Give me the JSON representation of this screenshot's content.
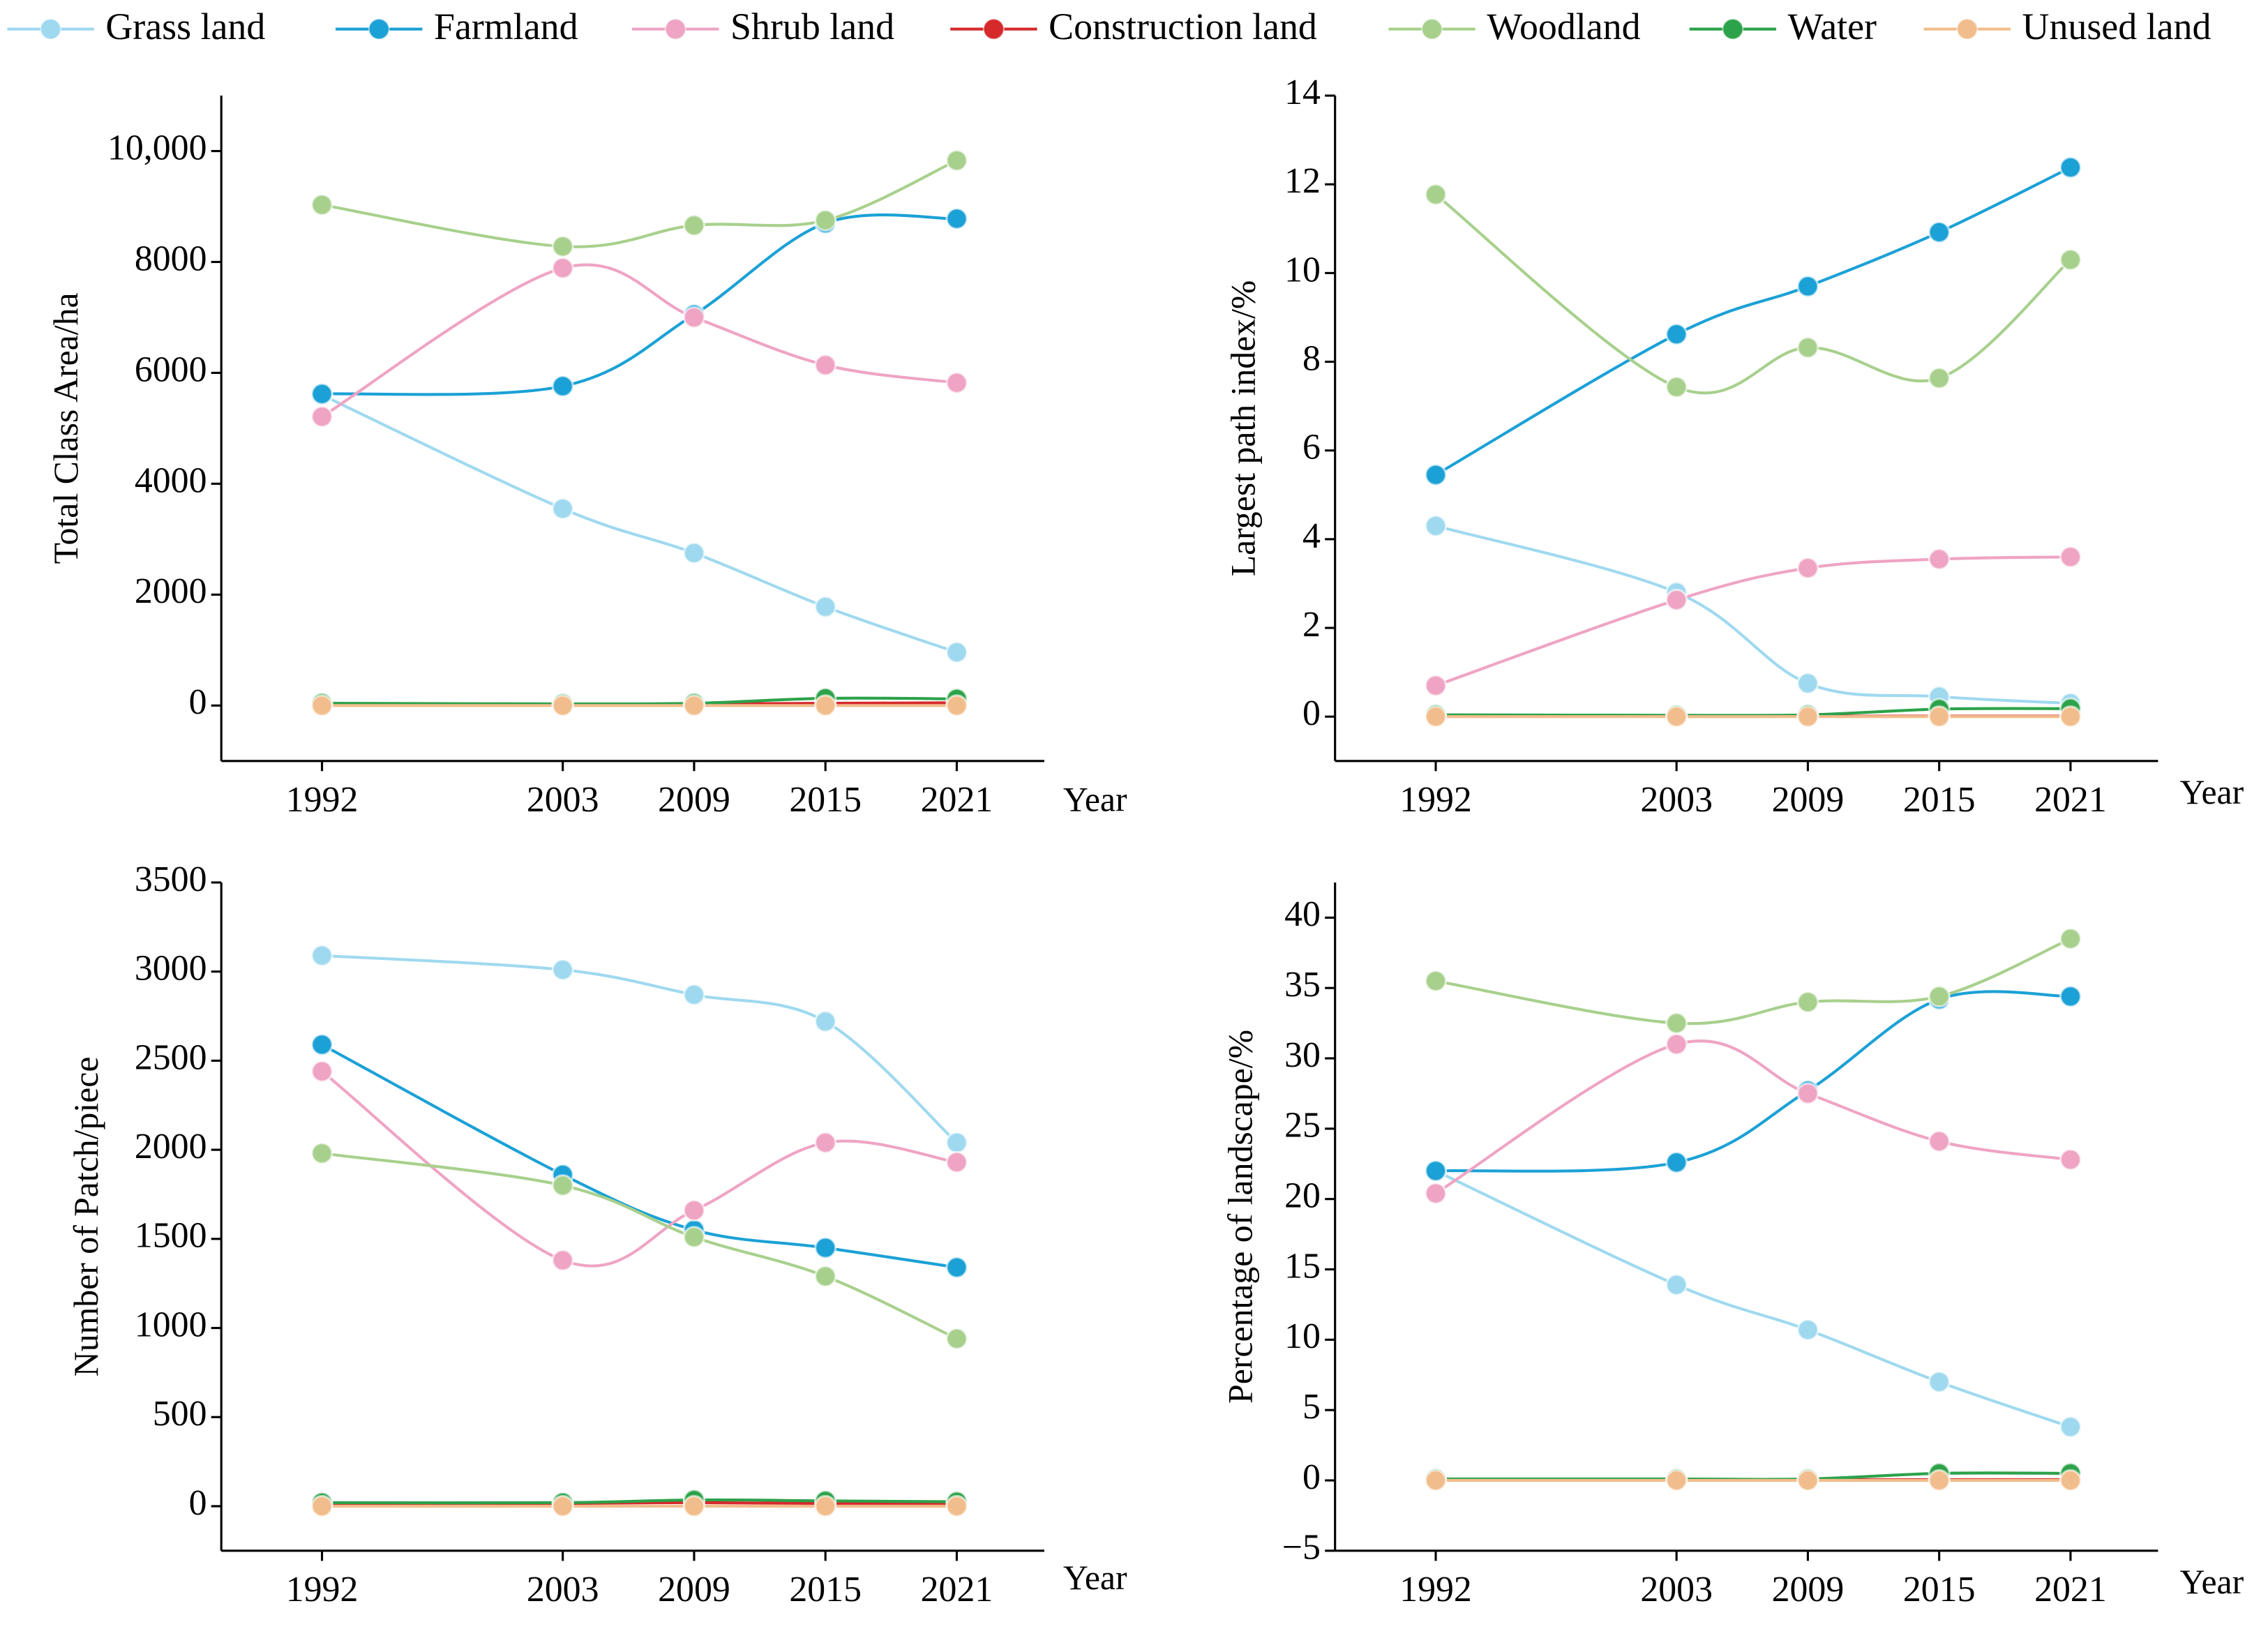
{
  "chart_data": [
    {
      "type": "line",
      "y_label": "Total Class Area/ha",
      "x_label": "Year",
      "x": [
        1992,
        2003,
        2009,
        2015,
        2021
      ],
      "xlim": [
        1987.4,
        2025
      ],
      "xticks": [
        1992,
        2003,
        2009,
        2015,
        2021
      ],
      "ylim": [
        -1000,
        11000
      ],
      "yticks": [
        0,
        2000,
        4000,
        6000,
        8000,
        {
          "value": 10000,
          "label": "10,000"
        }
      ],
      "series": [
        {
          "name": "Grass land",
          "color": "#9fd9ef",
          "values": [
            5600,
            3550,
            2750,
            1780,
            960
          ]
        },
        {
          "name": "Farmland",
          "color": "#1ba1d6",
          "values": [
            5620,
            5760,
            7050,
            8700,
            8780
          ]
        },
        {
          "name": "Shrub land",
          "color": "#efa4c4",
          "values": [
            5210,
            7890,
            7000,
            6140,
            5820
          ]
        },
        {
          "name": "Construction land",
          "color": "#d6292b",
          "values": [
            20,
            20,
            30,
            40,
            50
          ]
        },
        {
          "name": "Woodland",
          "color": "#a8d08d",
          "values": [
            9030,
            8280,
            8660,
            8750,
            9830
          ]
        },
        {
          "name": "Water",
          "color": "#2ca24a",
          "values": [
            40,
            30,
            40,
            130,
            120
          ]
        },
        {
          "name": "Unused land",
          "color": "#f2bd8c",
          "values": [
            0,
            0,
            0,
            0,
            0
          ]
        }
      ]
    },
    {
      "type": "line",
      "y_label": "Largest path index/%",
      "x_label": "Year",
      "x": [
        1992,
        2003,
        2009,
        2015,
        2021
      ],
      "xlim": [
        1987.4,
        2025
      ],
      "xticks": [
        1992,
        2003,
        2009,
        2015,
        2021
      ],
      "ylim": [
        -1,
        14
      ],
      "yticks": [
        0,
        2,
        4,
        6,
        8,
        10,
        12,
        14
      ],
      "series": [
        {
          "name": "Grass land",
          "color": "#9fd9ef",
          "values": [
            4.3,
            2.8,
            0.75,
            0.45,
            0.3
          ]
        },
        {
          "name": "Farmland",
          "color": "#1ba1d6",
          "values": [
            5.45,
            8.62,
            9.7,
            10.92,
            12.38
          ]
        },
        {
          "name": "Shrub land",
          "color": "#efa4c4",
          "values": [
            0.7,
            2.63,
            3.35,
            3.55,
            3.6
          ]
        },
        {
          "name": "Construction land",
          "color": "#d6292b",
          "values": [
            0.01,
            0.01,
            0.01,
            0.01,
            0.01
          ]
        },
        {
          "name": "Woodland",
          "color": "#a8d08d",
          "values": [
            11.77,
            7.43,
            8.32,
            7.63,
            10.3
          ]
        },
        {
          "name": "Water",
          "color": "#2ca24a",
          "values": [
            0.04,
            0.03,
            0.04,
            0.17,
            0.18
          ]
        },
        {
          "name": "Unused land",
          "color": "#f2bd8c",
          "values": [
            0,
            0,
            0,
            0,
            0
          ]
        }
      ]
    },
    {
      "type": "line",
      "y_label": "Number of Patch/piece",
      "x_label": "Year",
      "x": [
        1992,
        2003,
        2009,
        2015,
        2021
      ],
      "xlim": [
        1987.4,
        2025
      ],
      "xticks": [
        1992,
        2003,
        2009,
        2015,
        2021
      ],
      "ylim": [
        -250,
        3500
      ],
      "yticks": [
        0,
        500,
        1000,
        1500,
        2000,
        2500,
        3000,
        3500
      ],
      "series": [
        {
          "name": "Grass land",
          "color": "#9fd9ef",
          "values": [
            3090,
            3010,
            2870,
            2720,
            2040
          ]
        },
        {
          "name": "Farmland",
          "color": "#1ba1d6",
          "values": [
            2590,
            1860,
            1550,
            1450,
            1340
          ]
        },
        {
          "name": "Shrub land",
          "color": "#efa4c4",
          "values": [
            2440,
            1380,
            1660,
            2040,
            1930
          ]
        },
        {
          "name": "Construction land",
          "color": "#d6292b",
          "values": [
            10,
            15,
            20,
            15,
            15
          ]
        },
        {
          "name": "Woodland",
          "color": "#a8d08d",
          "values": [
            1980,
            1800,
            1510,
            1290,
            940
          ]
        },
        {
          "name": "Water",
          "color": "#2ca24a",
          "values": [
            20,
            20,
            35,
            30,
            25
          ]
        },
        {
          "name": "Unused land",
          "color": "#f2bd8c",
          "values": [
            0,
            0,
            0,
            0,
            0
          ]
        }
      ]
    },
    {
      "type": "line",
      "y_label": "Percentage of landscape/%",
      "x_label": "Year",
      "x": [
        1992,
        2003,
        2009,
        2015,
        2021
      ],
      "xlim": [
        1987.4,
        2025
      ],
      "xticks": [
        1992,
        2003,
        2009,
        2015,
        2021
      ],
      "ylim": [
        -5,
        42.5
      ],
      "yticks": [
        {
          "value": -5,
          "label": "−5"
        },
        0,
        5,
        10,
        15,
        20,
        25,
        30,
        35,
        40
      ],
      "series": [
        {
          "name": "Grass land",
          "color": "#9fd9ef",
          "values": [
            22,
            13.9,
            10.7,
            7,
            3.8
          ]
        },
        {
          "name": "Farmland",
          "color": "#1ba1d6",
          "values": [
            22,
            22.6,
            27.7,
            34.2,
            34.4
          ]
        },
        {
          "name": "Shrub land",
          "color": "#efa4c4",
          "values": [
            20.4,
            31,
            27.5,
            24.1,
            22.8
          ]
        },
        {
          "name": "Construction land",
          "color": "#d6292b",
          "values": [
            0.05,
            0.05,
            0.05,
            0.05,
            0.05
          ]
        },
        {
          "name": "Woodland",
          "color": "#a8d08d",
          "values": [
            35.5,
            32.5,
            34,
            34.4,
            38.5
          ]
        },
        {
          "name": "Water",
          "color": "#2ca24a",
          "values": [
            0.1,
            0.1,
            0.1,
            0.5,
            0.5
          ]
        },
        {
          "name": "Unused land",
          "color": "#f2bd8c",
          "values": [
            0,
            0,
            0,
            0,
            0
          ]
        }
      ]
    }
  ]
}
